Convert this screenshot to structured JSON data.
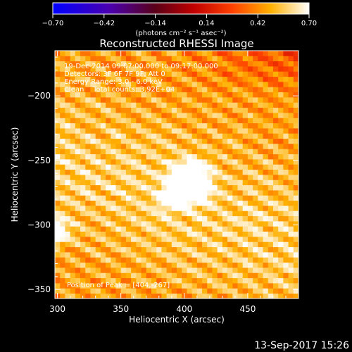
{
  "colorbar": {
    "ticks": [
      "-0.70",
      "-0.42",
      "-0.14",
      "0.14",
      "0.42",
      "0.70"
    ],
    "unit_label": "(photons cm⁻² s⁻¹ asec⁻²)"
  },
  "chart_data": {
    "type": "heatmap",
    "title": "Reconstructed RHESSI Image",
    "xlabel": "Heliocentric X (arcsec)",
    "ylabel": "Heliocentric Y (arcsec)",
    "xlim": [
      298,
      490
    ],
    "ylim": [
      -357,
      -165
    ],
    "clim": [
      -0.7,
      0.7
    ],
    "x_ticks": [
      "300",
      "350",
      "400",
      "450"
    ],
    "y_ticks": [
      "-200",
      "-250",
      "-300",
      "-350"
    ],
    "colormap": "hot (black-blue-purple-red-orange-yellow-white)",
    "peak": [
      404,
      -267
    ],
    "secondary_sources": [
      [
        387,
        -279
      ],
      [
        299,
        -305
      ]
    ],
    "annotations": [
      "19-Dec-2014 09:07:00.000 to 09:17:00.000",
      "Detectors: 3F 6F 7F 9F, Att 0",
      "Energy Range: 3.0 - 6.0 keV",
      "Clean    Total counts: 3.92E+04"
    ],
    "peak_label": "Position of Peak = [404,-267]"
  },
  "footer": {
    "date": "13-Sep-2017 15:26"
  }
}
